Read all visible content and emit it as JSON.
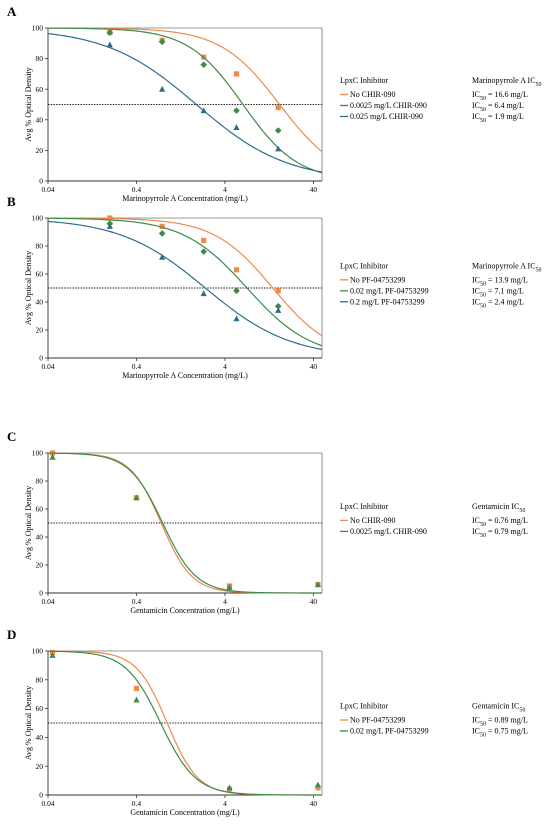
{
  "chart_data": [
    {
      "panel": "A",
      "type": "scatter",
      "xscale": "log",
      "xlim": [
        0.04,
        50
      ],
      "ylim": [
        0,
        100
      ],
      "xticks": [
        0.04,
        0.4,
        4,
        40
      ],
      "xtick_labels": [
        "0.04",
        "0.4",
        "4",
        "40"
      ],
      "yticks": [
        0,
        20,
        40,
        60,
        80,
        100
      ],
      "xlabel": "Marinopyrrole A Concentration (mg/L)",
      "ylabel": "Avg % Optical Density",
      "reference_line_y": 50,
      "legend_title": "LpxC Inhibitor",
      "ic_title": "Marinopyrrole A IC",
      "ic_sub": "50",
      "series": [
        {
          "name": "No CHIR-090",
          "color": "#f08a4b",
          "marker": "square",
          "ic50": 16.6,
          "hill": 1.3,
          "ic_label": "IC",
          "ic_value": " = 16.6 mg/L",
          "x": [
            0.2,
            0.78,
            2.3,
            5.4,
            16
          ],
          "y": [
            97,
            92,
            81,
            70,
            48
          ]
        },
        {
          "name": "0.0025 mg/L CHIR-090",
          "color": "#3d8a4a",
          "marker": "diamond",
          "ic50": 6.4,
          "hill": 1.4,
          "ic_label": "IC",
          "ic_value": " = 6.4 mg/L",
          "x": [
            0.2,
            0.78,
            2.3,
            5.4,
            16
          ],
          "y": [
            97,
            91,
            76,
            46,
            33
          ]
        },
        {
          "name": "0.025 mg/L CHIR-090",
          "color": "#2f6c8a",
          "marker": "triangle",
          "ic50": 1.9,
          "hill": 0.85,
          "ic_label": "IC",
          "ic_value": " = 1.9 mg/L",
          "x": [
            0.2,
            0.78,
            2.3,
            5.4,
            16
          ],
          "y": [
            89,
            60,
            46,
            35,
            21
          ]
        }
      ]
    },
    {
      "panel": "B",
      "type": "scatter",
      "xscale": "log",
      "xlim": [
        0.04,
        50
      ],
      "ylim": [
        0,
        100
      ],
      "xticks": [
        0.04,
        0.4,
        4,
        40
      ],
      "xtick_labels": [
        "0.04",
        "0.4",
        "4",
        "40"
      ],
      "yticks": [
        0,
        20,
        40,
        60,
        80,
        100
      ],
      "xlabel": "Marinopyrrole A Concentration (mg/L)",
      "ylabel": "Avg % Optical Density",
      "reference_line_y": 50,
      "legend_title": "LpxC Inhibitor",
      "ic_title": "Marinopyrrole A IC",
      "ic_sub": "50",
      "series": [
        {
          "name": "No PF-04753299",
          "color": "#f08a4b",
          "marker": "square",
          "ic50": 13.9,
          "hill": 1.3,
          "ic_label": "IC",
          "ic_value": " = 13.9 mg/L",
          "x": [
            0.2,
            0.78,
            2.3,
            5.4,
            16
          ],
          "y": [
            100,
            94,
            84,
            63,
            48
          ]
        },
        {
          "name": "0.02 mg/L PF-04753299",
          "color": "#3d8a4a",
          "marker": "diamond",
          "ic50": 7.1,
          "hill": 1.2,
          "ic_label": "IC",
          "ic_value": " = 7.1 mg/L",
          "x": [
            0.2,
            0.78,
            2.3,
            5.4,
            16
          ],
          "y": [
            96,
            89,
            76,
            48,
            37
          ]
        },
        {
          "name": "0.2 mg/L PF-04753299",
          "color": "#2f6c8a",
          "marker": "triangle",
          "ic50": 2.4,
          "hill": 0.9,
          "ic_label": "IC",
          "ic_value": " = 2.4 mg/L",
          "x": [
            0.2,
            0.78,
            2.3,
            5.4,
            16
          ],
          "y": [
            94,
            72,
            46,
            28,
            34
          ]
        }
      ]
    },
    {
      "panel": "C",
      "type": "scatter",
      "xscale": "log",
      "xlim": [
        0.04,
        50
      ],
      "ylim": [
        0,
        100
      ],
      "xticks": [
        0.04,
        0.4,
        4,
        40
      ],
      "xtick_labels": [
        "0.04",
        "0.4",
        "4",
        "40"
      ],
      "yticks": [
        0,
        20,
        40,
        60,
        80,
        100
      ],
      "xlabel": "Gentamicin Concentration (mg/L)",
      "ylabel": "Avg % Optical Density",
      "reference_line_y": 50,
      "legend_title": "LpxC Inhibitor",
      "ic_title": "Gentamicin IC",
      "ic_sub": "50",
      "series": [
        {
          "name": "No CHIR-090",
          "color": "#f08a4b",
          "marker": "square",
          "ic50": 0.76,
          "hill": 2.5,
          "ic_label": "IC",
          "ic_value": " = 0.76 mg/L",
          "x": [
            0.045,
            0.4,
            4.5,
            45
          ],
          "y": [
            100,
            68,
            5,
            6
          ]
        },
        {
          "name": "0.0025 mg/L CHIR-090",
          "color": "#3d8a4a",
          "marker": "triangle",
          "ic50": 0.79,
          "hill": 2.3,
          "ic_label": "IC",
          "ic_value": " = 0.79 mg/L",
          "x": [
            0.045,
            0.4,
            4.5,
            45
          ],
          "y": [
            97,
            68,
            4,
            6
          ]
        }
      ]
    },
    {
      "panel": "D",
      "type": "scatter",
      "xscale": "log",
      "xlim": [
        0.04,
        50
      ],
      "ylim": [
        0,
        100
      ],
      "xticks": [
        0.04,
        0.4,
        4,
        40
      ],
      "xtick_labels": [
        "0.04",
        "0.4",
        "4",
        "40"
      ],
      "yticks": [
        0,
        20,
        40,
        60,
        80,
        100
      ],
      "xlabel": "Gentamicin Concentration (mg/L)",
      "ylabel": "Avg % Optical Density",
      "reference_line_y": 50,
      "legend_title": "LpxC Inhibitor",
      "ic_title": "Gentamicin IC",
      "ic_sub": "50",
      "series": [
        {
          "name": "No PF-04753299",
          "color": "#f08a4b",
          "marker": "square",
          "ic50": 0.89,
          "hill": 2.5,
          "ic_label": "IC",
          "ic_value": " = 0.89 mg/L",
          "x": [
            0.045,
            0.4,
            4.5,
            45
          ],
          "y": [
            99,
            74,
            4,
            5
          ]
        },
        {
          "name": "0.02 mg/L PF-04753299",
          "color": "#3d8a4a",
          "marker": "triangle",
          "ic50": 0.75,
          "hill": 2.2,
          "ic_label": "IC",
          "ic_value": " = 0.75 mg/L",
          "x": [
            0.045,
            0.4,
            4.5,
            45
          ],
          "y": [
            97,
            66,
            5,
            7
          ]
        }
      ]
    }
  ]
}
